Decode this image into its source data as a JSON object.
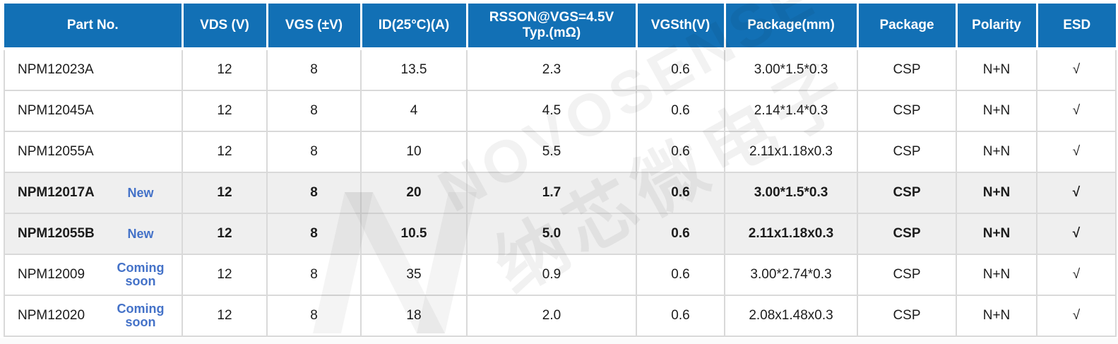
{
  "watermark": {
    "brand": "NOVOSENSE",
    "brand_cn": "纳芯微电子"
  },
  "colors": {
    "header_bg": "#1270b5",
    "header_text": "#ffffff",
    "tag_blue": "#4472c8",
    "highlight_row_bg": "#efefef",
    "grid_line": "#d9d9d9"
  },
  "table": {
    "columns": [
      {
        "key": "part_no",
        "label": "Part No."
      },
      {
        "key": "vds",
        "label": "VDS (V)"
      },
      {
        "key": "vgs",
        "label": "VGS (±V)"
      },
      {
        "key": "id",
        "label": "ID(25°C)(A)"
      },
      {
        "key": "rsson",
        "label": "RSSON@VGS=4.5V\nTyp.(mΩ)"
      },
      {
        "key": "vgsth",
        "label": "VGSth(V)"
      },
      {
        "key": "package_mm",
        "label": "Package(mm)"
      },
      {
        "key": "package",
        "label": "Package"
      },
      {
        "key": "polarity",
        "label": "Polarity"
      },
      {
        "key": "esd",
        "label": "ESD"
      }
    ],
    "rows": [
      {
        "part_no": "NPM12023A",
        "tag": "",
        "vds": "12",
        "vgs": "8",
        "id": "13.5",
        "rsson": "2.3",
        "vgsth": "0.6",
        "package_mm": "3.00*1.5*0.3",
        "package": "CSP",
        "polarity": "N+N",
        "esd": "√",
        "highlight": false
      },
      {
        "part_no": "NPM12045A",
        "tag": "",
        "vds": "12",
        "vgs": "8",
        "id": "4",
        "rsson": "4.5",
        "vgsth": "0.6",
        "package_mm": "2.14*1.4*0.3",
        "package": "CSP",
        "polarity": "N+N",
        "esd": "√",
        "highlight": false
      },
      {
        "part_no": "NPM12055A",
        "tag": "",
        "vds": "12",
        "vgs": "8",
        "id": "10",
        "rsson": "5.5",
        "vgsth": "0.6",
        "package_mm": "2.11x1.18x0.3",
        "package": "CSP",
        "polarity": "N+N",
        "esd": "√",
        "highlight": false
      },
      {
        "part_no": "NPM12017A",
        "tag": "New",
        "vds": "12",
        "vgs": "8",
        "id": "20",
        "rsson": "1.7",
        "vgsth": "0.6",
        "package_mm": "3.00*1.5*0.3",
        "package": "CSP",
        "polarity": "N+N",
        "esd": "√",
        "highlight": true
      },
      {
        "part_no": "NPM12055B",
        "tag": "New",
        "vds": "12",
        "vgs": "8",
        "id": "10.5",
        "rsson": "5.0",
        "vgsth": "0.6",
        "package_mm": "2.11x1.18x0.3",
        "package": "CSP",
        "polarity": "N+N",
        "esd": "√",
        "highlight": true
      },
      {
        "part_no": "NPM12009",
        "tag": "Coming soon",
        "vds": "12",
        "vgs": "8",
        "id": "35",
        "rsson": "0.9",
        "vgsth": "0.6",
        "package_mm": "3.00*2.74*0.3",
        "package": "CSP",
        "polarity": "N+N",
        "esd": "√",
        "highlight": false
      },
      {
        "part_no": "NPM12020",
        "tag": "Coming soon",
        "vds": "12",
        "vgs": "8",
        "id": "18",
        "rsson": "2.0",
        "vgsth": "0.6",
        "package_mm": "2.08x1.48x0.3",
        "package": "CSP",
        "polarity": "N+N",
        "esd": "√",
        "highlight": false
      }
    ]
  }
}
